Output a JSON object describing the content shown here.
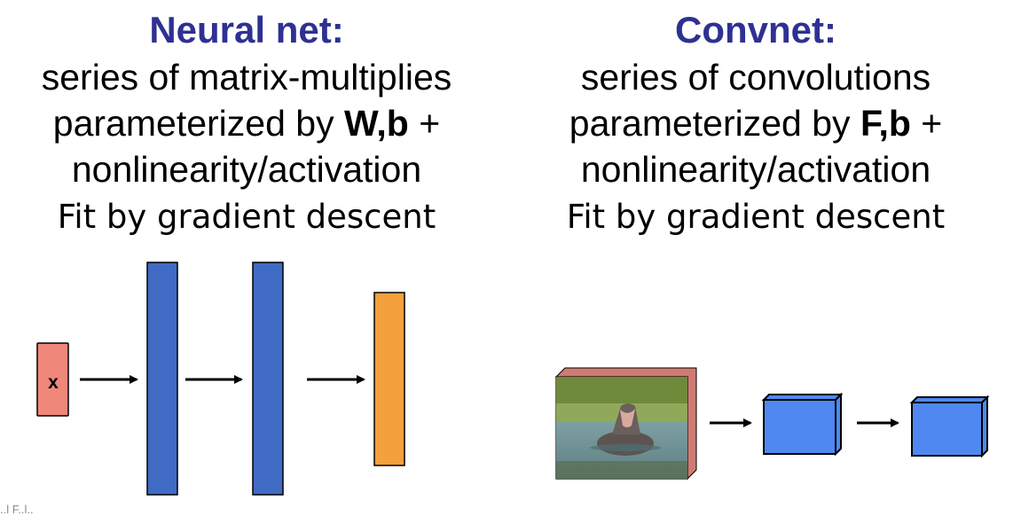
{
  "colors": {
    "heading": "#2e3192",
    "layer_blue": "#3f6bc4",
    "input_red": "#f0877b",
    "output_orange": "#f4a03c",
    "feature_map_blue": "#4f88f0",
    "image_depth": "#cf7b72"
  },
  "left": {
    "heading": "Neural net:",
    "line1": "series of matrix-multiplies",
    "line2_pre": "parameterized by ",
    "line2_bold": "W,b",
    "line2_post": " +",
    "line3": "nonlinearity/activation",
    "line4": "Fit by gradient descent",
    "input_label": "x"
  },
  "right": {
    "heading": "Convnet:",
    "line1": "series of convolutions",
    "line2_pre": "parameterized by ",
    "line2_bold": "F,b",
    "line2_post": " +",
    "line3": "nonlinearity/activation",
    "line4": "Fit by gradient descent",
    "image_description": "hippopotamus in water"
  },
  "footer_cut_text": "..l F..l.."
}
